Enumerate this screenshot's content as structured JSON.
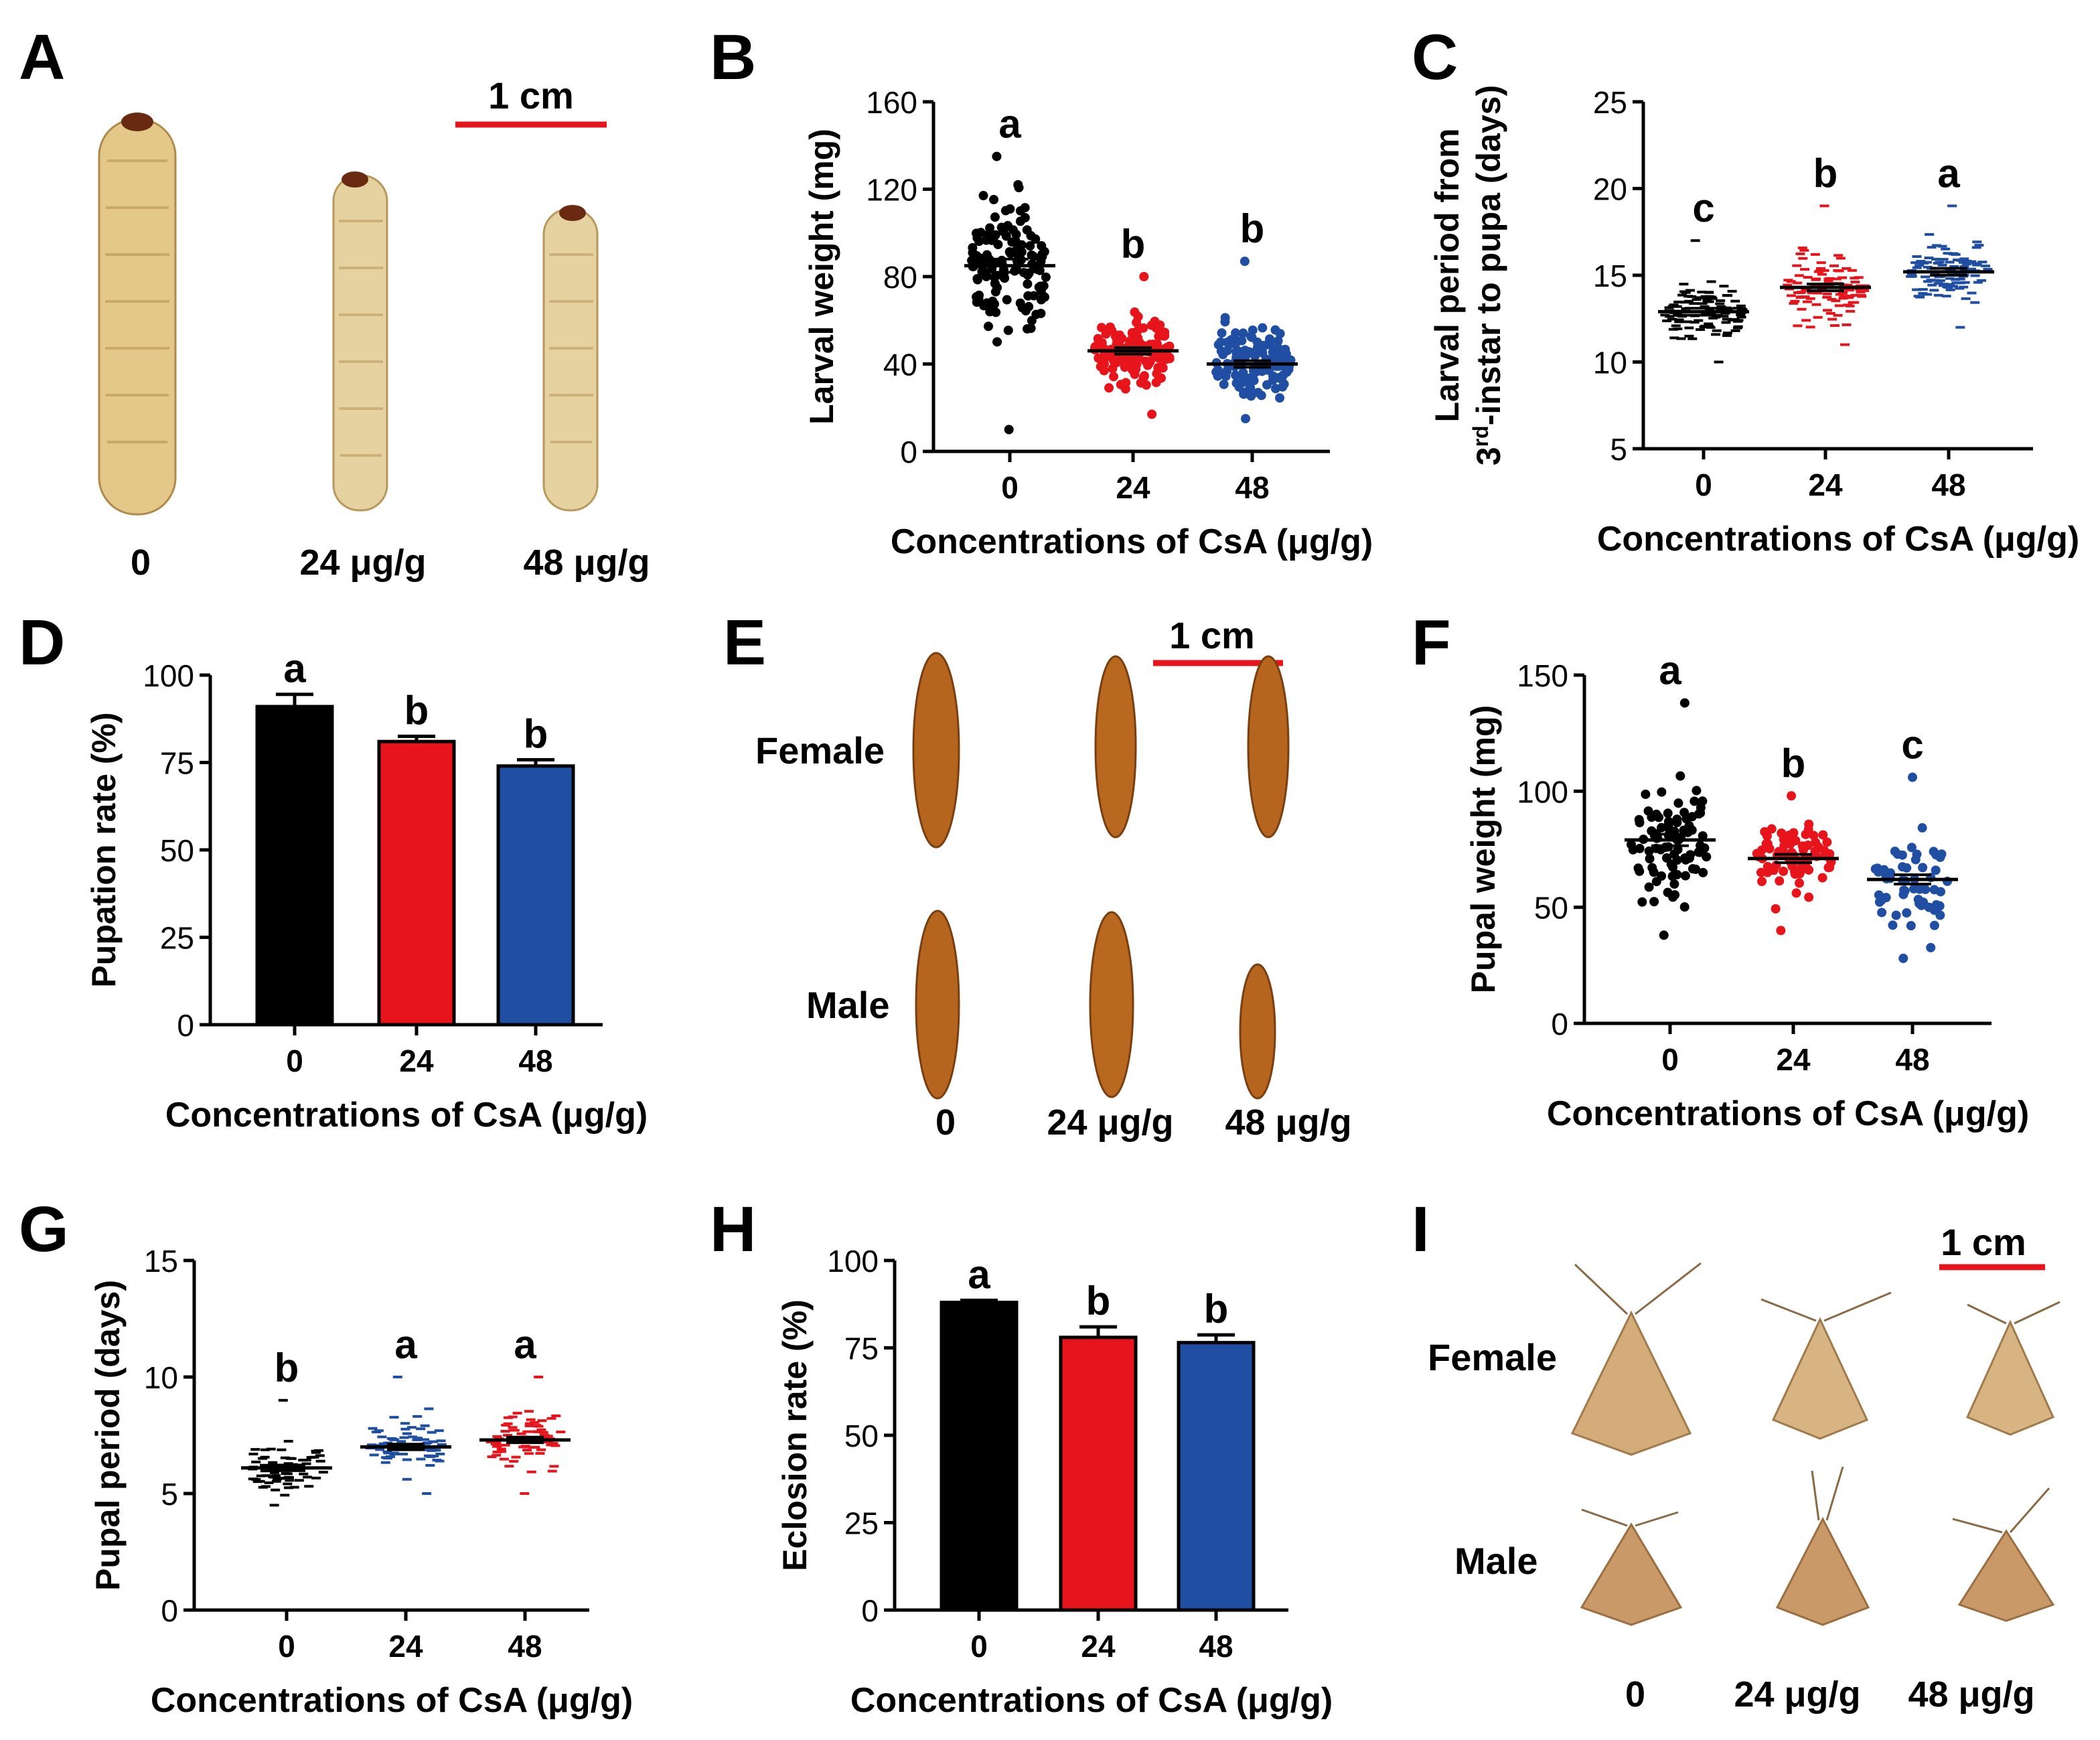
{
  "figure": {
    "axis_title": "Concentrations of CsA (μg/g)",
    "dose_labels": [
      "0",
      "24 μg/g",
      "48 μg/g"
    ],
    "sex_labels": {
      "female": "Female",
      "male": "Male"
    },
    "scale_label": "1 cm",
    "colors": {
      "control": "#000000",
      "mid": "#e8141c",
      "high": "#1f4ea3",
      "larva": "#e3c88a",
      "pupa": "#b5651d",
      "moth": "#d0a878"
    }
  },
  "photos": {
    "A": {
      "panel": "A",
      "subject": "larva"
    },
    "E": {
      "panel": "E",
      "subject": "pupa"
    },
    "I": {
      "panel": "I",
      "subject": "moth"
    }
  },
  "chart_data": [
    {
      "panel": "B",
      "type": "scatter",
      "ylabel": "Larval weight (mg)",
      "xlabel": "Concentrations of CsA (μg/g)",
      "categories": [
        "0",
        "24",
        "48"
      ],
      "ylim": [
        0,
        160
      ],
      "yticks": [
        0,
        40,
        80,
        120,
        160
      ],
      "means": [
        85,
        46,
        40
      ],
      "sem": [
        3,
        1.5,
        1.5
      ],
      "letters": [
        "a",
        "b",
        "b"
      ],
      "spread": [
        [
          10,
          135
        ],
        [
          17,
          80
        ],
        [
          15,
          87
        ]
      ],
      "n": [
        130,
        130,
        130
      ],
      "colors": [
        "#000000",
        "#e8141c",
        "#1f4ea3"
      ]
    },
    {
      "panel": "C",
      "type": "scatter",
      "ylabel": "Larval period from 3rd-instar to pupa (days)",
      "xlabel": "Concentrations of CsA (μg/g)",
      "categories": [
        "0",
        "24",
        "48"
      ],
      "ylim": [
        5,
        25
      ],
      "yticks": [
        5,
        10,
        15,
        20,
        25
      ],
      "means": [
        12.9,
        14.3,
        15.2
      ],
      "sem": [
        0.2,
        0.2,
        0.2
      ],
      "letters": [
        "c",
        "b",
        "a"
      ],
      "spread": [
        [
          10,
          17
        ],
        [
          11,
          19
        ],
        [
          12,
          19
        ]
      ],
      "n": [
        110,
        110,
        110
      ],
      "colors": [
        "#000000",
        "#e8141c",
        "#1f4ea3"
      ]
    },
    {
      "panel": "D",
      "type": "bar",
      "ylabel": "Pupation rate (%)",
      "xlabel": "Concentrations of CsA (μg/g)",
      "categories": [
        "0",
        "24",
        "48"
      ],
      "values": [
        91,
        81,
        74
      ],
      "errors": [
        3.5,
        1.5,
        1.8
      ],
      "ylim": [
        0,
        100
      ],
      "yticks": [
        0,
        25,
        50,
        75,
        100
      ],
      "letters": [
        "a",
        "b",
        "b"
      ],
      "colors": [
        "#000000",
        "#e8141c",
        "#1f4ea3"
      ]
    },
    {
      "panel": "F",
      "type": "scatter",
      "ylabel": "Pupal weight (mg)",
      "xlabel": "Concentrations of CsA (μg/g)",
      "categories": [
        "0",
        "24",
        "48"
      ],
      "ylim": [
        0,
        150
      ],
      "yticks": [
        0,
        50,
        100,
        150
      ],
      "means": [
        79,
        71,
        62
      ],
      "sem": [
        2.5,
        1.8,
        2
      ],
      "letters": [
        "a",
        "b",
        "c"
      ],
      "spread": [
        [
          38,
          138
        ],
        [
          40,
          98
        ],
        [
          28,
          106
        ]
      ],
      "n": [
        90,
        85,
        60
      ],
      "colors": [
        "#000000",
        "#e8141c",
        "#1f4ea3"
      ]
    },
    {
      "panel": "G",
      "type": "scatter",
      "ylabel": "Pupal period (days)",
      "xlabel": "Concentrations of CsA (μg/g)",
      "categories": [
        "0",
        "24",
        "48"
      ],
      "ylim": [
        0,
        15
      ],
      "yticks": [
        0,
        5,
        10,
        15
      ],
      "means": [
        6.1,
        7.0,
        7.3
      ],
      "sem": [
        0.12,
        0.12,
        0.12
      ],
      "letters": [
        "b",
        "a",
        "a"
      ],
      "spread": [
        [
          4.5,
          9
        ],
        [
          5,
          10
        ],
        [
          5,
          10
        ]
      ],
      "n": [
        70,
        70,
        70
      ],
      "colors": [
        "#000000",
        "#1f4ea3",
        "#e8141c"
      ]
    },
    {
      "panel": "H",
      "type": "bar",
      "ylabel": "Eclosion rate (%)",
      "xlabel": "Concentrations of CsA (μg/g)",
      "categories": [
        "0",
        "24",
        "48"
      ],
      "values": [
        88,
        78,
        76.5
      ],
      "errors": [
        0.6,
        3,
        2.2
      ],
      "ylim": [
        0,
        100
      ],
      "yticks": [
        0,
        25,
        50,
        75,
        100
      ],
      "letters": [
        "a",
        "b",
        "b"
      ],
      "colors": [
        "#000000",
        "#e8141c",
        "#1f4ea3"
      ]
    }
  ]
}
